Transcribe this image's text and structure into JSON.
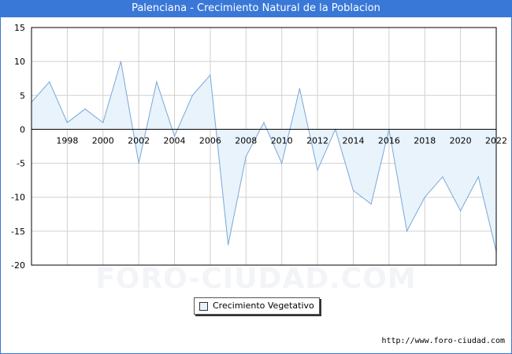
{
  "chart_data": {
    "type": "area",
    "title": "Palenciana - Crecimiento Natural de la Poblacion",
    "xlabel": "",
    "ylabel": "",
    "x_tick_labels": [
      "1998",
      "2000",
      "2002",
      "2004",
      "2006",
      "2008",
      "2010",
      "2012",
      "2014",
      "2016",
      "2018",
      "2020",
      "2022"
    ],
    "y_tick_labels": [
      "15",
      "10",
      "5",
      "0",
      "-5",
      "-10",
      "-15",
      "-20"
    ],
    "ylim": [
      -20,
      15
    ],
    "xlim": [
      1996,
      2022
    ],
    "grid": true,
    "legend_position": "bottom-center",
    "series": [
      {
        "name": "Crecimiento Vegetativo",
        "x": [
          1996,
          1997,
          1998,
          1999,
          2000,
          2001,
          2002,
          2003,
          2004,
          2005,
          2006,
          2007,
          2008,
          2009,
          2010,
          2011,
          2012,
          2013,
          2014,
          2015,
          2016,
          2017,
          2018,
          2019,
          2020,
          2021,
          2022
        ],
        "values": [
          4,
          7,
          1,
          3,
          1,
          10,
          -5,
          7,
          -1,
          5,
          8,
          -17,
          -4,
          1,
          -5,
          6,
          -6,
          0,
          -9,
          -11,
          0,
          -15,
          -10,
          -7,
          -12,
          -7,
          -18
        ]
      }
    ]
  },
  "watermark": "FORO-CIUDAD.COM",
  "footer_url": "http://www.foro-ciudad.com",
  "colors": {
    "title_bar": "#3a78d8",
    "fill": "#e8f3fc",
    "line": "#7aa7d6",
    "zero_line": "#000000",
    "grid": "#d0d0d0"
  }
}
